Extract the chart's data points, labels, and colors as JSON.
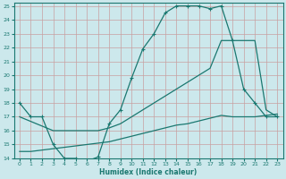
{
  "xlabel": "Humidex (Indice chaleur)",
  "bg_color": "#cce8ec",
  "grid_color": "#b0d4d8",
  "line_color": "#1a7870",
  "xlim": [
    -0.5,
    23.5
  ],
  "ylim": [
    14,
    25.2
  ],
  "xticks": [
    0,
    1,
    2,
    3,
    4,
    5,
    6,
    7,
    8,
    9,
    10,
    11,
    12,
    13,
    14,
    15,
    16,
    17,
    18,
    19,
    20,
    21,
    22,
    23
  ],
  "yticks": [
    14,
    15,
    16,
    17,
    18,
    19,
    20,
    21,
    22,
    23,
    24,
    25
  ],
  "line1_x": [
    0,
    1,
    2,
    3,
    4,
    5,
    6,
    7,
    8,
    9,
    10,
    11,
    12,
    13,
    14,
    15,
    16,
    17,
    18,
    19,
    20,
    21,
    22,
    23
  ],
  "line1_y": [
    18,
    17,
    17,
    15,
    14,
    14,
    13.8,
    14.1,
    16.5,
    17.5,
    19.8,
    21.9,
    23.0,
    24.5,
    25.0,
    25.0,
    25.0,
    24.8,
    25.0,
    22.5,
    19.0,
    18.0,
    17.0,
    17.0
  ],
  "line2_x": [
    0,
    3,
    6,
    7,
    8,
    9,
    10,
    11,
    12,
    13,
    14,
    15,
    16,
    17,
    18,
    19,
    20,
    21,
    22,
    23
  ],
  "line2_y": [
    17.0,
    16.0,
    16.0,
    16.0,
    16.2,
    16.5,
    17.0,
    17.5,
    18.0,
    18.5,
    19.0,
    19.5,
    20.0,
    20.5,
    22.5,
    22.5,
    22.5,
    22.5,
    17.5,
    17.0
  ],
  "line3_x": [
    0,
    1,
    2,
    3,
    4,
    5,
    6,
    7,
    8,
    9,
    10,
    11,
    12,
    13,
    14,
    15,
    16,
    17,
    18,
    19,
    20,
    21,
    22,
    23
  ],
  "line3_y": [
    14.5,
    14.5,
    14.6,
    14.7,
    14.8,
    14.9,
    15.0,
    15.1,
    15.2,
    15.4,
    15.6,
    15.8,
    16.0,
    16.2,
    16.4,
    16.5,
    16.7,
    16.9,
    17.1,
    17.0,
    17.0,
    17.0,
    17.1,
    17.2
  ]
}
